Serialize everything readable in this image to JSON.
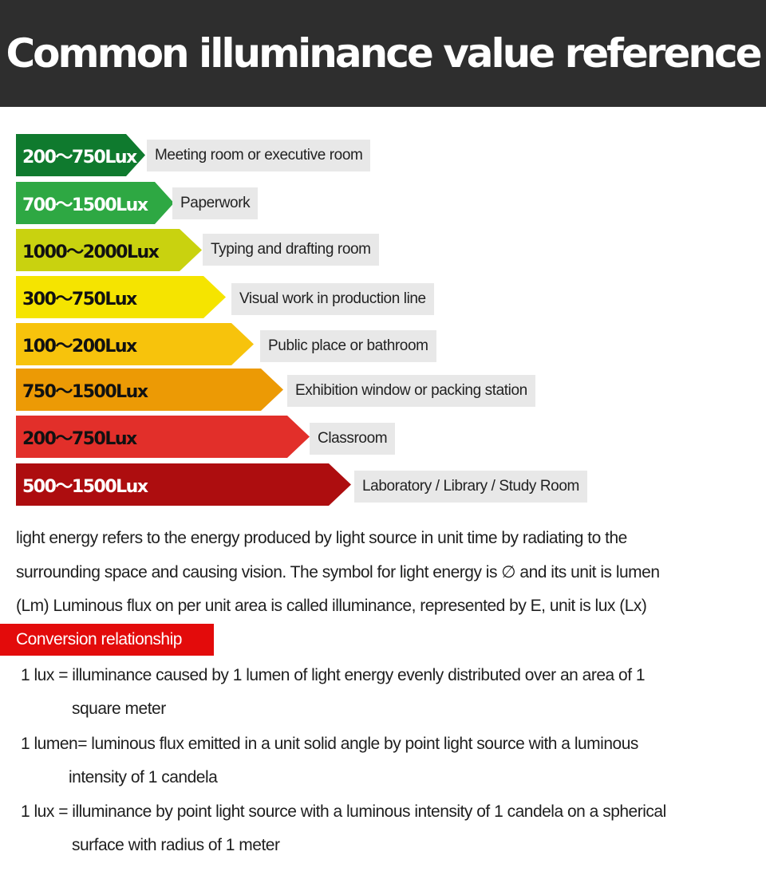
{
  "title": "Common illuminance value reference",
  "bands": [
    {
      "lux": "200～750Lux",
      "label": "Meeting room or executive room",
      "color": "#0f7a2e",
      "text_color": "#ffffff"
    },
    {
      "lux": "700～1500Lux",
      "label": "Paperwork",
      "color": "#2ea843",
      "text_color": "#ffffff"
    },
    {
      "lux": "1000～2000Lux",
      "label": "Typing and drafting room",
      "color": "#c9d20f",
      "text_color": "#111111"
    },
    {
      "lux": "300～750Lux",
      "label": "Visual work in production line",
      "color": "#f5e400",
      "text_color": "#111111"
    },
    {
      "lux": "100～200Lux",
      "label": "Public place or bathroom",
      "color": "#f7c30c",
      "text_color": "#111111"
    },
    {
      "lux": "750～1500Lux",
      "label": "Exhibition window or packing station",
      "color": "#ec9a05",
      "text_color": "#111111"
    },
    {
      "lux": "200～750Lux",
      "label": "Classroom",
      "color": "#e22f2a",
      "text_color": "#111111"
    },
    {
      "lux": "500～1500Lux",
      "label": "Laboratory / Library / Study Room",
      "color": "#ad0d0f",
      "text_color": "#ffffff"
    }
  ],
  "paragraph": [
    "light energy refers to the energy produced by light source in unit time by radiating to the",
    "surrounding space and causing vision. The symbol for light energy is ∅ and its unit is lumen",
    "(Lm) Luminous flux on per unit area is called illuminance, represented by E, unit is lux (Lx)"
  ],
  "section_label": "Conversion relationship",
  "definitions": [
    {
      "line1": "1 lux = illuminance caused by 1 lumen of light energy evenly distributed over an area of 1",
      "line2": "square meter"
    },
    {
      "line1": "1 lumen= luminous flux emitted in a unit solid angle by point light source with a luminous",
      "line2": "intensity of 1 candela"
    },
    {
      "line1": "1 lux = illuminance by point light source with a luminous intensity of 1 candela on a spherical",
      "line2": "surface with radius of 1 meter"
    }
  ]
}
